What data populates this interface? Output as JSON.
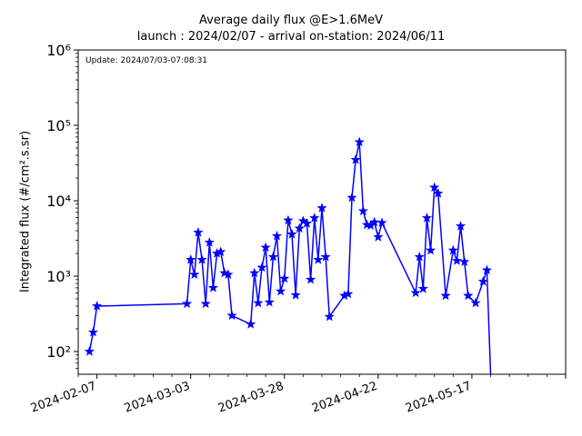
{
  "chart_data": {
    "type": "line",
    "title": "Average daily flux @E>1.6MeV",
    "subtitle": "launch : 2024/02/07 - arrival on-station: 2024/06/11",
    "ylabel": "Integrated flux (#/cm².s.sr)",
    "xlabel": "",
    "annotation": "Update: 2024/07/03-07:08:31",
    "y_scale": "log",
    "ylim": [
      50,
      1000000
    ],
    "xlim": [
      "2024-02-02",
      "2024-06-11"
    ],
    "x_ticks": [
      "2024-02-07",
      "2024-03-03",
      "2024-03-28",
      "2024-04-22",
      "2024-05-17"
    ],
    "y_ticks": [
      {
        "value": 100,
        "label": "10²"
      },
      {
        "value": 1000,
        "label": "10³"
      },
      {
        "value": 10000,
        "label": "10⁴"
      },
      {
        "value": 100000,
        "label": "10⁵"
      },
      {
        "value": 1000000,
        "label": "10⁶"
      }
    ],
    "grid": false,
    "marker": "star",
    "color": "#0000ff",
    "series": [
      {
        "x": [
          "2024-02-05",
          "2024-02-06",
          "2024-02-07",
          "2024-03-02",
          "2024-03-03",
          "2024-03-04",
          "2024-03-05",
          "2024-03-06",
          "2024-03-07",
          "2024-03-08",
          "2024-03-09",
          "2024-03-10",
          "2024-03-11",
          "2024-03-12",
          "2024-03-13",
          "2024-03-14",
          "2024-03-19",
          "2024-03-20",
          "2024-03-21",
          "2024-03-22",
          "2024-03-23",
          "2024-03-24",
          "2024-03-25",
          "2024-03-26",
          "2024-03-27",
          "2024-03-28",
          "2024-03-29",
          "2024-03-30",
          "2024-03-31",
          "2024-04-01",
          "2024-04-02",
          "2024-04-03",
          "2024-04-04",
          "2024-04-05",
          "2024-04-06",
          "2024-04-07",
          "2024-04-08",
          "2024-04-09",
          "2024-04-13",
          "2024-04-14",
          "2024-04-15",
          "2024-04-16",
          "2024-04-17",
          "2024-04-18",
          "2024-04-19",
          "2024-04-20",
          "2024-04-21",
          "2024-04-22",
          "2024-04-23",
          "2024-05-02",
          "2024-05-03",
          "2024-05-04",
          "2024-05-05",
          "2024-05-06",
          "2024-05-07",
          "2024-05-08",
          "2024-05-10",
          "2024-05-12",
          "2024-05-13",
          "2024-05-14",
          "2024-05-15",
          "2024-05-16",
          "2024-05-18",
          "2024-05-20",
          "2024-05-21",
          "2024-05-22"
        ],
        "y": [
          100,
          180,
          400,
          430,
          1650,
          1050,
          3800,
          1650,
          430,
          2800,
          700,
          2000,
          2100,
          1100,
          1050,
          300,
          230,
          1100,
          440,
          1300,
          2400,
          450,
          1800,
          3400,
          630,
          930,
          5500,
          3600,
          560,
          4300,
          5400,
          5000,
          900,
          5900,
          1650,
          8000,
          1800,
          290,
          550,
          580,
          11000,
          35000,
          60000,
          7300,
          4800,
          4700,
          5200,
          3300,
          5100,
          600,
          1800,
          680,
          5900,
          2200,
          15000,
          12500,
          550,
          2200,
          1600,
          4600,
          1550,
          550,
          440,
          850,
          1200,
          50
        ]
      }
    ]
  }
}
